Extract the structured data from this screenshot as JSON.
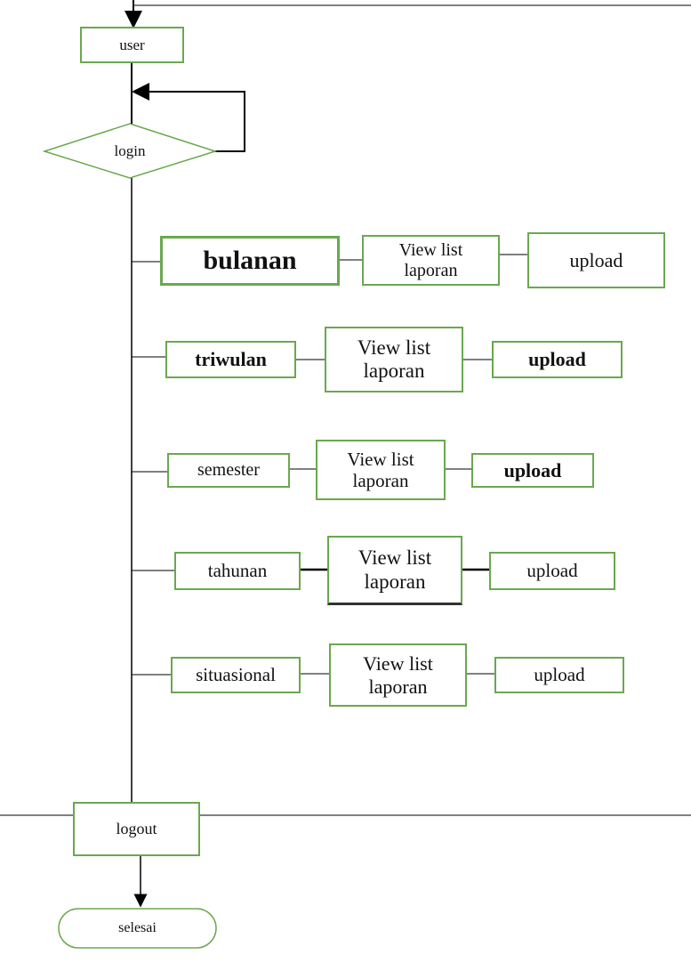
{
  "nodes": {
    "user": "user",
    "login": "login",
    "logout": "logout",
    "selesai": "selesai"
  },
  "rows": [
    {
      "category": "bulanan",
      "view": "View list laporan",
      "action": "upload"
    },
    {
      "category": "triwulan",
      "view": "View list laporan",
      "action": "upload"
    },
    {
      "category": "semester",
      "view": "View list laporan",
      "action": "upload"
    },
    {
      "category": "tahunan",
      "view": "View list laporan",
      "action": "upload"
    },
    {
      "category": "situasional",
      "view": "View list laporan",
      "action": "upload"
    }
  ],
  "colors": {
    "node_border": "#6aa84f",
    "line": "#000000",
    "background": "#ffffff"
  }
}
